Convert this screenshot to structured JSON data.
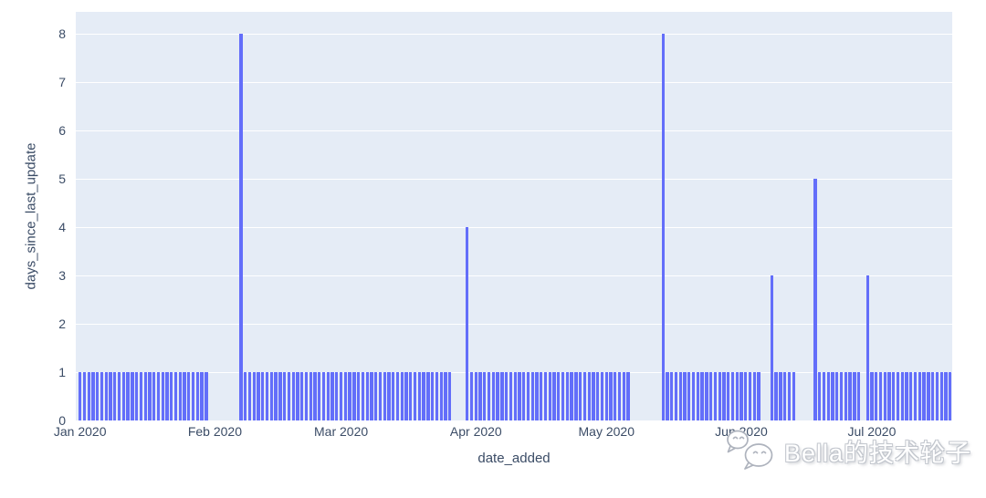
{
  "watermark": {
    "text": "Bella的技术轮子",
    "icon": "wechat-logo-icon"
  },
  "chart_data": {
    "type": "bar",
    "title": "",
    "xlabel": "date_added",
    "ylabel": "days_since_last_update",
    "legend": "none",
    "grid": "horizontal-white-gridlines",
    "ylim": [
      0,
      8.45
    ],
    "y_ticks": [
      0,
      1,
      2,
      3,
      4,
      5,
      6,
      7,
      8
    ],
    "x_anchor_date": "2020-01-01",
    "x_axis_range": [
      "2019-12-31",
      "2020-07-21"
    ],
    "x_ticks": [
      {
        "label": "Jan 2020",
        "date": "2020-01-01"
      },
      {
        "label": "Feb 2020",
        "date": "2020-02-01"
      },
      {
        "label": "Mar 2020",
        "date": "2020-03-01"
      },
      {
        "label": "Apr 2020",
        "date": "2020-04-01"
      },
      {
        "label": "May 2020",
        "date": "2020-05-01"
      },
      {
        "label": "Jun 2020",
        "date": "2020-06-01"
      },
      {
        "label": "Jul 2020",
        "date": "2020-07-01"
      }
    ],
    "bar_granularity": "one bar per day",
    "segments": [
      {
        "start": "2020-01-01",
        "days": 30,
        "value": 1
      },
      {
        "start": "2020-02-07",
        "days": 1,
        "value": 8
      },
      {
        "start": "2020-02-08",
        "days": 48,
        "value": 1
      },
      {
        "start": "2020-03-30",
        "days": 1,
        "value": 4
      },
      {
        "start": "2020-03-31",
        "days": 37,
        "value": 1
      },
      {
        "start": "2020-05-14",
        "days": 1,
        "value": 8
      },
      {
        "start": "2020-05-15",
        "days": 22,
        "value": 1
      },
      {
        "start": "2020-06-08",
        "days": 1,
        "value": 3
      },
      {
        "start": "2020-06-09",
        "days": 5,
        "value": 1
      },
      {
        "start": "2020-06-18",
        "days": 1,
        "value": 5
      },
      {
        "start": "2020-06-19",
        "days": 10,
        "value": 1
      },
      {
        "start": "2020-06-30",
        "days": 1,
        "value": 3
      },
      {
        "start": "2020-07-01",
        "days": 19,
        "value": 1
      }
    ],
    "colors": {
      "bar": "#636efa",
      "plot_background": "#e5ecf6",
      "gridline": "#ffffff",
      "tick_text": "#3b4c66",
      "page_background": "#ffffff"
    }
  }
}
